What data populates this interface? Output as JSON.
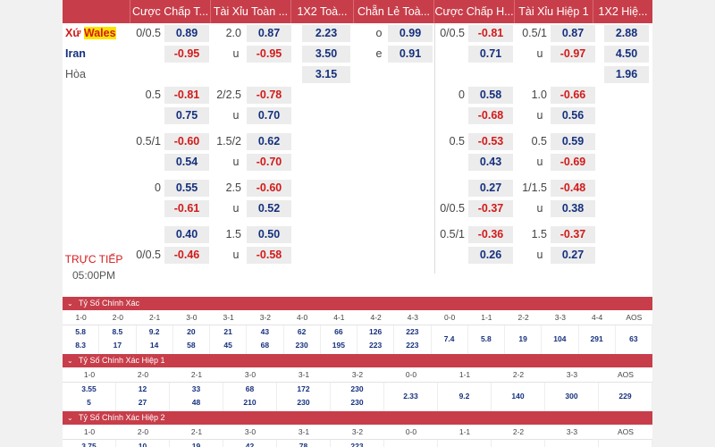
{
  "header": [
    "Cược Chấp T...",
    "Tài Xỉu Toàn ...",
    "1X2 Toà...",
    "Chẵn Lẻ Toà...",
    "Cược Chấp H...",
    "Tài Xỉu Hiệp 1",
    "1X2 Hiệ..."
  ],
  "teams": {
    "home_prefix": "Xứ ",
    "home_name": "Wales",
    "away": "Iran",
    "draw": "Hòa"
  },
  "live": "TRỰC TIẾP",
  "time": "05:00PM",
  "blocks": [
    {
      "r1": {
        "ah_line": "0/0.5",
        "ah_val": "0.89",
        "ou_line": "2.0",
        "ou_val": "0.87",
        "x12": "2.23",
        "oe_lbl": "o",
        "oe_val": "0.99",
        "ah1_line": "0/0.5",
        "ah1_val": "-0.81",
        "ou1_line": "0.5/1",
        "ou1_val": "0.87",
        "x121": "2.88"
      },
      "r2": {
        "ah_val": "-0.95",
        "ou_lbl": "u",
        "ou_val": "-0.95",
        "x12": "3.50",
        "oe_lbl": "e",
        "oe_val": "0.91",
        "ah1_val": "0.71",
        "ou1_lbl": "u",
        "ou1_val": "-0.97",
        "x121": "4.50"
      },
      "r3": {
        "x12": "3.15",
        "x121": "1.96"
      }
    },
    {
      "r1": {
        "ah_line": "0.5",
        "ah_val": "-0.81",
        "ou_line": "2/2.5",
        "ou_val": "-0.78",
        "ah1_line": "0",
        "ah1_val": "0.58",
        "ou1_line": "1.0",
        "ou1_val": "-0.66"
      },
      "r2": {
        "ah_val": "0.75",
        "ou_lbl": "u",
        "ou_val": "0.70",
        "ah1_val": "-0.68",
        "ou1_lbl": "u",
        "ou1_val": "0.56"
      }
    },
    {
      "r1": {
        "ah_line": "0.5/1",
        "ah_val": "-0.60",
        "ou_line": "1.5/2",
        "ou_val": "0.62",
        "ah1_line": "0.5",
        "ah1_val": "-0.53",
        "ou1_line": "0.5",
        "ou1_val": "0.59"
      },
      "r2": {
        "ah_val": "0.54",
        "ou_lbl": "u",
        "ou_val": "-0.70",
        "ah1_val": "0.43",
        "ou1_lbl": "u",
        "ou1_val": "-0.69"
      }
    },
    {
      "r1": {
        "ah_line": "0",
        "ah_val": "0.55",
        "ou_line": "2.5",
        "ou_val": "-0.60",
        "ah1_val": "0.27",
        "ou1_line": "1/1.5",
        "ou1_val": "-0.48"
      },
      "r2": {
        "ah_val": "-0.61",
        "ou_lbl": "u",
        "ou_val": "0.52",
        "ah1_line": "0/0.5",
        "ah1_val": "-0.37",
        "ou1_lbl": "u",
        "ou1_val": "0.38"
      }
    },
    {
      "r1": {
        "ah_val": "0.40",
        "ou_line": "1.5",
        "ou_val": "0.50",
        "ah1_line": "0.5/1",
        "ah1_val": "-0.36",
        "ou1_line": "1.5",
        "ou1_val": "-0.37"
      },
      "r2": {
        "ah_line": "0/0.5",
        "ah_val": "-0.46",
        "ou_lbl": "u",
        "ou_val": "-0.58",
        "ah1_val": "0.26",
        "ou1_lbl": "u",
        "ou1_val": "0.27"
      }
    }
  ],
  "sections": [
    {
      "title": "Tỷ Số Chính Xác",
      "heads": [
        "1-0",
        "2-0",
        "2-1",
        "3-0",
        "3-1",
        "3-2",
        "4-0",
        "4-1",
        "4-2",
        "4-3",
        "0-0",
        "1-1",
        "2-2",
        "3-3",
        "4-4",
        "AOS"
      ],
      "top": [
        "5.8",
        "8.5",
        "9.2",
        "20",
        "21",
        "43",
        "62",
        "66",
        "126",
        "223",
        "",
        "",
        "",
        "",
        "",
        ""
      ],
      "bot": [
        "8.3",
        "17",
        "14",
        "58",
        "45",
        "68",
        "230",
        "195",
        "223",
        "223",
        "",
        "",
        "",
        "",
        "",
        ""
      ],
      "mid": [
        "",
        "",
        "",
        "",
        "",
        "",
        "",
        "",
        "",
        "",
        "7.4",
        "5.8",
        "19",
        "104",
        "291",
        "63"
      ]
    },
    {
      "title": "Tỷ Số Chính Xác Hiệp 1",
      "heads": [
        "1-0",
        "2-0",
        "2-1",
        "3-0",
        "3-1",
        "3-2",
        "0-0",
        "1-1",
        "2-2",
        "3-3",
        "AOS"
      ],
      "top": [
        "3.55",
        "12",
        "33",
        "68",
        "172",
        "230",
        "",
        "",
        "",
        "",
        ""
      ],
      "bot": [
        "5",
        "27",
        "48",
        "210",
        "230",
        "230",
        "",
        "",
        "",
        "",
        ""
      ],
      "mid": [
        "",
        "",
        "",
        "",
        "",
        "",
        "2.33",
        "9.2",
        "140",
        "300",
        "229"
      ]
    },
    {
      "title": "Tỷ Số Chính Xác Hiệp 2",
      "heads": [
        "1-0",
        "2-0",
        "2-1",
        "3-0",
        "3-1",
        "3-2",
        "0-0",
        "1-1",
        "2-2",
        "3-3",
        "AOS"
      ],
      "top": [
        "3.75",
        "10",
        "19",
        "42",
        "78",
        "223",
        "",
        "",
        "",
        "",
        ""
      ],
      "bot": [
        "5",
        "19",
        "26",
        "104",
        "143",
        "230",
        "",
        "",
        "",
        "",
        ""
      ],
      "mid": [
        "",
        "",
        "",
        "",
        "",
        "",
        "2.73",
        "6.9",
        "61",
        "230",
        "87"
      ]
    }
  ],
  "colors": {
    "accent": "#c73e4a",
    "negative": "#d21a1a",
    "positive": "#15307d"
  }
}
